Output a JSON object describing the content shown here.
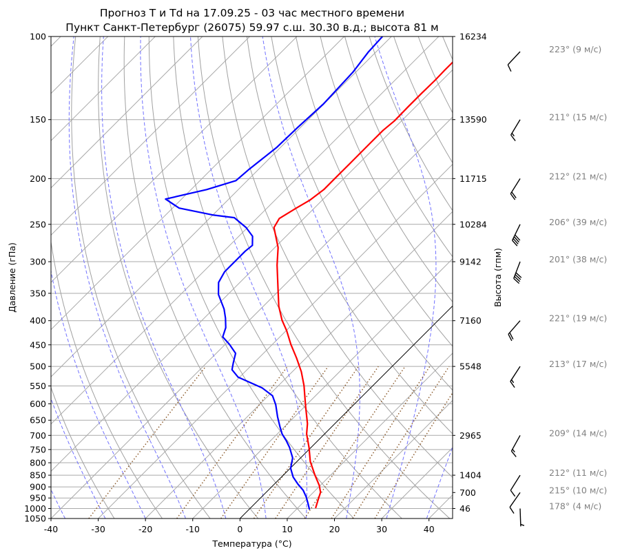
{
  "chart_data": {
    "type": "line",
    "subtype": "skew-t log-p",
    "title_line1": "Прогноз T и Td на 17.09.25 - 03 час местного времени",
    "title_line2": "Пункт Санкт-Петербург (26075) 59.97 с.ш. 30.30 в.д.; высота 81 м",
    "xlabel": "Температура (°C)",
    "ylabel": "Давление (гПа)",
    "ylabel_right": "Высота (гпм)",
    "xlim": [
      -40,
      45
    ],
    "ylim": [
      1050,
      100
    ],
    "x_ticks": [
      "-40",
      "-30",
      "-20",
      "-10",
      "0",
      "10",
      "20",
      "30",
      "40"
    ],
    "y_ticks": [
      "100",
      "150",
      "200",
      "250",
      "300",
      "350",
      "400",
      "450",
      "500",
      "550",
      "600",
      "650",
      "700",
      "750",
      "800",
      "850",
      "900",
      "950",
      "1000",
      "1050"
    ],
    "height_ticks": [
      {
        "p": 100,
        "label": "16234"
      },
      {
        "p": 150,
        "label": "13590"
      },
      {
        "p": 200,
        "label": "11715"
      },
      {
        "p": 250,
        "label": "10284"
      },
      {
        "p": 300,
        "label": "9142"
      },
      {
        "p": 400,
        "label": "7160"
      },
      {
        "p": 500,
        "label": "5548"
      },
      {
        "p": 700,
        "label": "2965"
      },
      {
        "p": 850,
        "label": "1404"
      },
      {
        "p": 925,
        "label": "700"
      },
      {
        "p": 1000,
        "label": "46"
      }
    ],
    "series": [
      {
        "name": "T",
        "color": "#ff0000",
        "p": [
          998,
          956,
          924,
          894,
          850,
          795,
          743,
          695,
          661,
          607,
          549,
          513,
          480,
          449,
          420,
          399,
          373,
          343,
          305,
          280,
          254,
          243,
          231,
          222,
          211,
          200,
          184,
          168,
          158,
          151,
          141,
          132,
          124,
          118,
          113
        ],
        "t": [
          13.8,
          12.5,
          11.5,
          9.8,
          6.7,
          2.8,
          -0.4,
          -3.8,
          -5.8,
          -9.9,
          -14.6,
          -18.1,
          -22.0,
          -26.1,
          -29.9,
          -33.1,
          -36.7,
          -40.5,
          -45.8,
          -49.3,
          -54.4,
          -55.2,
          -53.8,
          -52.6,
          -51.9,
          -51.9,
          -51.9,
          -51.9,
          -51.9,
          -51.5,
          -51.6,
          -51.6,
          -51.5,
          -51.6,
          -51.6
        ]
      },
      {
        "name": "Td",
        "color": "#0000ff",
        "p": [
          1005,
          979,
          946,
          915,
          888,
          858,
          822,
          781,
          743,
          718,
          695,
          672,
          639,
          603,
          577,
          555,
          527,
          508,
          491,
          469,
          449,
          433,
          414,
          395,
          378,
          352,
          332,
          315,
          300,
          285,
          277,
          265,
          254,
          242,
          239,
          231,
          221,
          211,
          202,
          191,
          172,
          156,
          139,
          119,
          108,
          100
        ],
        "t": [
          12.8,
          11.4,
          9.5,
          7.4,
          5.0,
          2.5,
          0.1,
          -1.7,
          -4.5,
          -6.7,
          -9.0,
          -10.9,
          -13.6,
          -16.5,
          -19.1,
          -23.0,
          -30.3,
          -33.2,
          -34.4,
          -35.9,
          -39.1,
          -42.1,
          -43.4,
          -45.5,
          -47.7,
          -52.0,
          -54.5,
          -55.5,
          -55.5,
          -55.5,
          -55.2,
          -57.1,
          -60.3,
          -64.9,
          -69.8,
          -78.6,
          -83.4,
          -76.7,
          -72.4,
          -72.0,
          -70.8,
          -70.6,
          -70.1,
          -70.6,
          -71.6,
          -71.9
        ]
      }
    ],
    "highlighted_isotherm_c": 0,
    "wind": [
      {
        "p": 100,
        "dir": 223,
        "speed": 9,
        "label": "223° (9 м/с)"
      },
      {
        "p": 150,
        "dir": 211,
        "speed": 15,
        "label": "211° (15 м/с)"
      },
      {
        "p": 200,
        "dir": 212,
        "speed": 21,
        "label": "212° (21 м/с)"
      },
      {
        "p": 250,
        "dir": 206,
        "speed": 39,
        "label": "206° (39 м/с)"
      },
      {
        "p": 300,
        "dir": 201,
        "speed": 38,
        "label": "201° (38 м/с)"
      },
      {
        "p": 400,
        "dir": 221,
        "speed": 19,
        "label": "221° (19 м/с)"
      },
      {
        "p": 500,
        "dir": 213,
        "speed": 17,
        "label": "213° (17 м/с)"
      },
      {
        "p": 700,
        "dir": 209,
        "speed": 14,
        "label": "209° (14 м/с)"
      },
      {
        "p": 850,
        "dir": 212,
        "speed": 11,
        "label": "212° (11 м/с)"
      },
      {
        "p": 925,
        "dir": 215,
        "speed": 10,
        "label": "215° (10 м/с)"
      },
      {
        "p": 1000,
        "dir": 178,
        "speed": 4,
        "label": "178° (4 м/с)"
      }
    ],
    "grid": true
  }
}
